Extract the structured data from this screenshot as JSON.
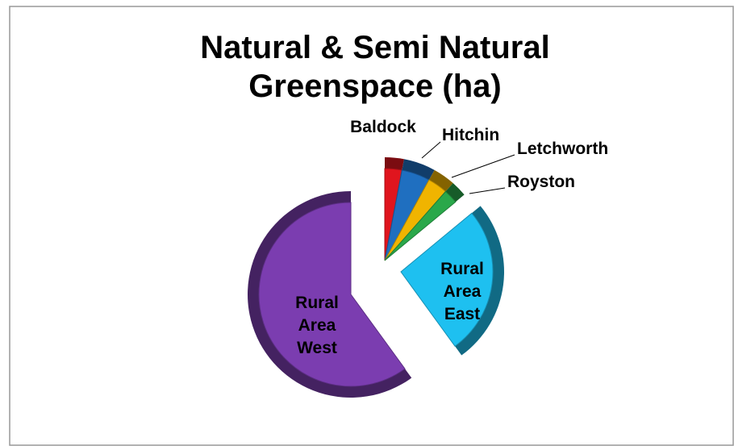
{
  "chart_data": {
    "type": "pie",
    "title": "Natural & Semi Natural Greenspace (ha)",
    "categories": [
      "Baldock",
      "Hitchin",
      "Letchworth",
      "Royston",
      "Rural Area East",
      "Rural Area West"
    ],
    "values": [
      3,
      5,
      3.5,
      2.5,
      26,
      60
    ],
    "colors": [
      "#e0151e",
      "#1f6fc0",
      "#f0b400",
      "#2aa84a",
      "#1ec0f0",
      "#7b3db0"
    ]
  }
}
